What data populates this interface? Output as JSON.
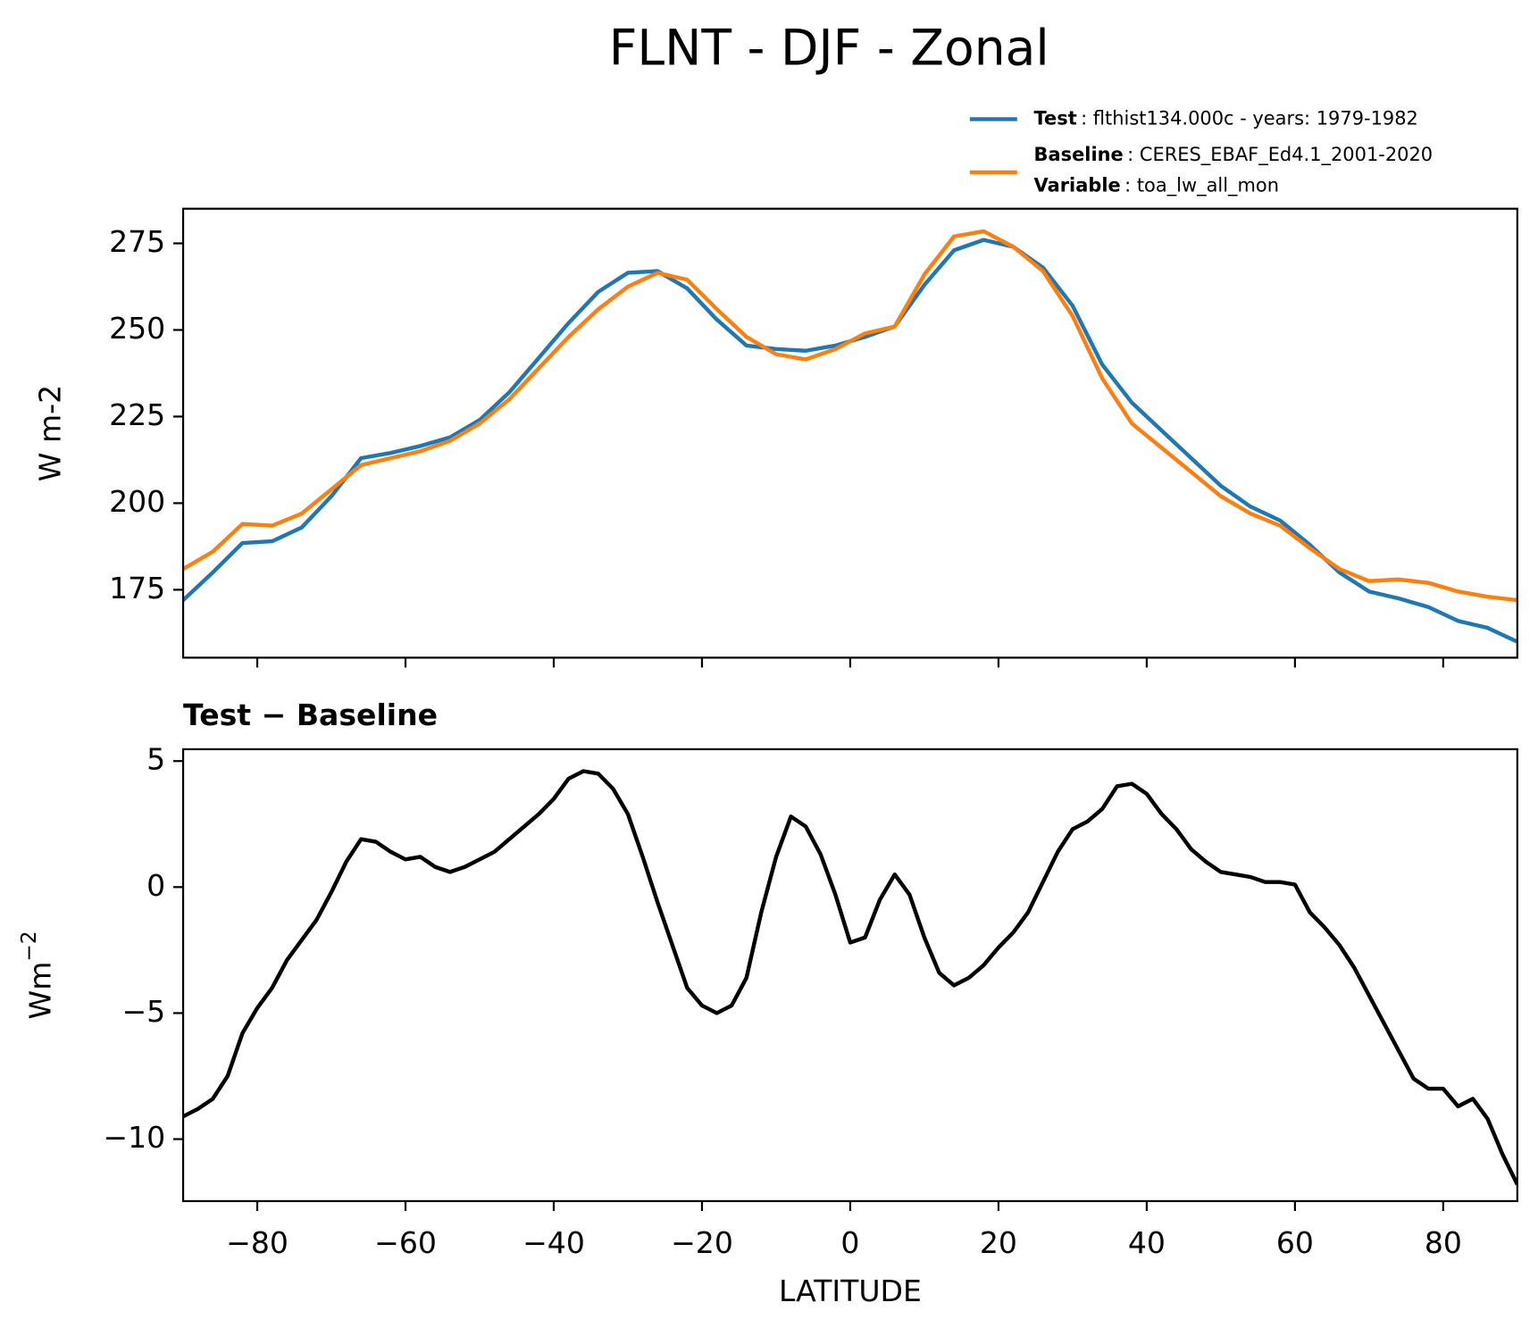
{
  "chart_data": [
    {
      "type": "line",
      "title": "FLNT - DJF - Zonal",
      "ylabel": "W m-2",
      "x": [
        -90,
        -86,
        -82,
        -78,
        -74,
        -70,
        -66,
        -62,
        -58,
        -54,
        -50,
        -46,
        -42,
        -38,
        -34,
        -30,
        -26,
        -22,
        -18,
        -14,
        -10,
        -6,
        -2,
        2,
        6,
        10,
        14,
        18,
        22,
        26,
        30,
        34,
        38,
        42,
        46,
        50,
        54,
        58,
        62,
        66,
        70,
        74,
        78,
        82,
        86,
        90
      ],
      "series": [
        {
          "name": "Test",
          "detail": ": flthist134.000c - years: 1979-1982",
          "color": "#1f77b4",
          "values": [
            172,
            180,
            188.5,
            189,
            193,
            202,
            213,
            214.5,
            216.5,
            219,
            224,
            232,
            242,
            252,
            261,
            266.5,
            267,
            262,
            253,
            245.5,
            244.5,
            244,
            245.5,
            248,
            251,
            263,
            273,
            276,
            274,
            268,
            257,
            240,
            229,
            221,
            213,
            205,
            199,
            195,
            188,
            180,
            174.5,
            172.5,
            170,
            166,
            164,
            160
          ]
        },
        {
          "name": "Baseline",
          "detail": ": CERES_EBAF_Ed4.1_2001-2020",
          "color": "#ff7f0e",
          "values": [
            181,
            186,
            194,
            193.5,
            197,
            204,
            211,
            213,
            215,
            218,
            223,
            230,
            239,
            248,
            256,
            262.5,
            266.5,
            264.5,
            256,
            248,
            243,
            241.5,
            244.5,
            249,
            251,
            266,
            277,
            278.5,
            274,
            267,
            254,
            236,
            223,
            216,
            209,
            202,
            197,
            193.5,
            187,
            181,
            177.5,
            178,
            177,
            174.5,
            173,
            172
          ]
        }
      ],
      "legend_extra": {
        "name": "Variable",
        "detail": ": toa_lw_all_mon"
      },
      "xlim": [
        -90,
        90
      ],
      "xticks": [
        -80,
        -60,
        -40,
        -20,
        0,
        20,
        40,
        60,
        80
      ],
      "ylim": [
        155.4,
        285
      ],
      "yticks": [
        175,
        200,
        225,
        250,
        275
      ]
    },
    {
      "type": "line",
      "title": "Test − Baseline",
      "ylabel": "Wm",
      "ylabel_sup": "−2",
      "xlabel": "LATITUDE",
      "x": [
        -90,
        -88,
        -86,
        -84,
        -82,
        -80,
        -78,
        -76,
        -74,
        -72,
        -70,
        -68,
        -66,
        -64,
        -62,
        -60,
        -58,
        -56,
        -54,
        -52,
        -50,
        -48,
        -46,
        -44,
        -42,
        -40,
        -38,
        -36,
        -34,
        -32,
        -30,
        -28,
        -26,
        -24,
        -22,
        -20,
        -18,
        -16,
        -14,
        -12,
        -10,
        -8,
        -6,
        -4,
        -2,
        0,
        2,
        4,
        6,
        8,
        10,
        12,
        14,
        16,
        18,
        20,
        22,
        24,
        26,
        28,
        30,
        32,
        34,
        36,
        38,
        40,
        42,
        44,
        46,
        48,
        50,
        52,
        54,
        56,
        58,
        60,
        62,
        64,
        66,
        68,
        70,
        72,
        74,
        76,
        78,
        80,
        82,
        84,
        86,
        88,
        90
      ],
      "series": [
        {
          "name": "Test − Baseline",
          "color": "#000000",
          "values": [
            -9.1,
            -8.8,
            -8.4,
            -7.5,
            -5.8,
            -4.8,
            -4.0,
            -2.9,
            -2.1,
            -1.3,
            -0.2,
            1.0,
            1.9,
            1.8,
            1.4,
            1.1,
            1.2,
            0.8,
            0.6,
            0.8,
            1.1,
            1.4,
            1.9,
            2.4,
            2.9,
            3.5,
            4.3,
            4.6,
            4.5,
            3.9,
            2.9,
            1.2,
            -0.6,
            -2.3,
            -4.0,
            -4.7,
            -5.0,
            -4.7,
            -3.6,
            -1.0,
            1.2,
            2.8,
            2.4,
            1.3,
            -0.3,
            -2.2,
            -2.0,
            -0.5,
            0.5,
            -0.3,
            -2.0,
            -3.4,
            -3.9,
            -3.6,
            -3.1,
            -2.4,
            -1.8,
            -1.0,
            0.2,
            1.4,
            2.3,
            2.6,
            3.1,
            4.0,
            4.1,
            3.7,
            2.9,
            2.3,
            1.5,
            1.0,
            0.6,
            0.5,
            0.4,
            0.2,
            0.2,
            0.1,
            -1.0,
            -1.6,
            -2.3,
            -3.2,
            -4.3,
            -5.4,
            -6.5,
            -7.6,
            -8.0,
            -8.0,
            -8.7,
            -8.4,
            -9.2,
            -10.6,
            -11.8
          ]
        }
      ],
      "xlim": [
        -90,
        90
      ],
      "xticks": [
        {
          "value": -80,
          "label": "−80"
        },
        {
          "value": -60,
          "label": "−60"
        },
        {
          "value": -40,
          "label": "−40"
        },
        {
          "value": -20,
          "label": "−20"
        },
        0,
        20,
        40,
        60,
        80
      ],
      "ylim": [
        -12.46,
        5.47
      ],
      "yticks": [
        {
          "value": -10,
          "label": "−10"
        },
        {
          "value": -5,
          "label": "−5"
        },
        0,
        5
      ]
    }
  ]
}
